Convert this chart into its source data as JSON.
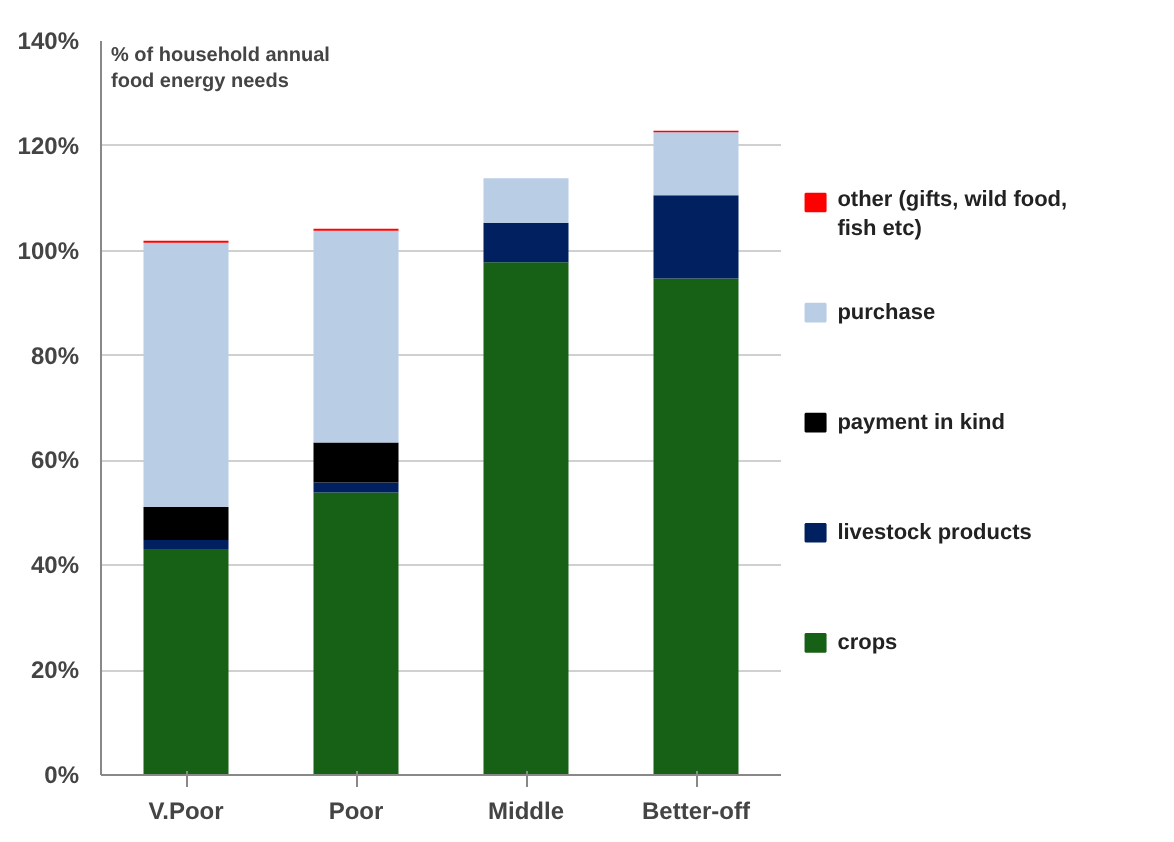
{
  "chart_data": {
    "type": "bar",
    "stacked": true,
    "ylabel": "% of household annual food energy needs",
    "categories": [
      "V.Poor",
      "Poor",
      "Middle",
      "Better-off"
    ],
    "series": [
      {
        "name": "crops",
        "color": "#176117",
        "values": [
          43.1,
          53.9,
          97.8,
          94.7
        ]
      },
      {
        "name": "livestock products",
        "color": "#002060",
        "values": [
          1.7,
          1.9,
          7.5,
          15.9
        ]
      },
      {
        "name": "payment in kind",
        "color": "#000000",
        "values": [
          6.3,
          7.6,
          null,
          null
        ]
      },
      {
        "name": "purchase",
        "color": "#b9cde5",
        "values": [
          50.4,
          40.4,
          8.5,
          12.0
        ]
      },
      {
        "name": "other (gifts, wild food, fish etc)",
        "color": "#ff0000",
        "values": [
          0.4,
          0.4,
          null,
          0.3
        ]
      }
    ],
    "ylim": [
      0,
      140
    ],
    "yticks": [
      {
        "value": 0,
        "label": "0%"
      },
      {
        "value": 20,
        "label": "20%"
      },
      {
        "value": 40,
        "label": "40%"
      },
      {
        "value": 60,
        "label": "60%"
      },
      {
        "value": 80,
        "label": "80%"
      },
      {
        "value": 100,
        "label": "100%"
      },
      {
        "value": 120,
        "label": "120%"
      },
      {
        "value": 140,
        "label": "140%"
      }
    ],
    "grid": "y",
    "legend": "right"
  }
}
